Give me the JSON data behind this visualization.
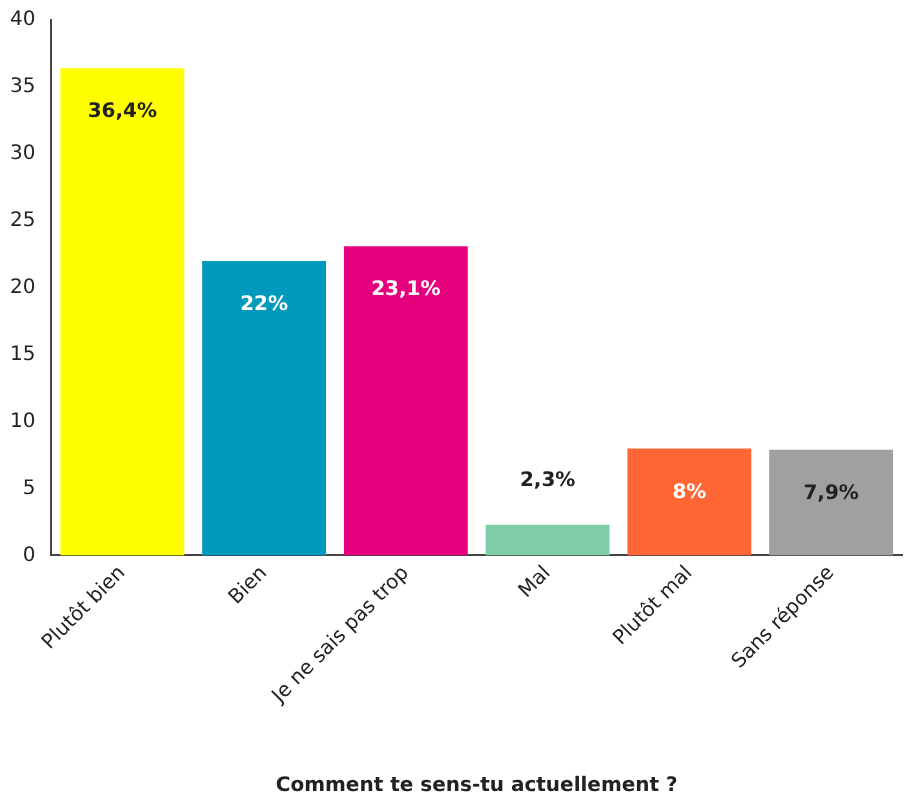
{
  "chart_data": {
    "type": "bar",
    "xlabel": "Comment te sens-tu actuellement ?",
    "categories": [
      "Plutôt bien",
      "Bien",
      "Je ne sais pas trop",
      "Mal",
      "Plutôt mal",
      "Sans réponse"
    ],
    "values": [
      36.4,
      22,
      23.1,
      2.3,
      8,
      7.9
    ],
    "colors": [
      "#ffff00",
      "#0099bb",
      "#e6007e",
      "#80cca8",
      "#ff6633",
      "#a0a0a0"
    ],
    "value_labels": [
      "36,4%",
      "22%",
      "23,1%",
      "2,3%",
      "8%",
      "7,9%"
    ],
    "ylim": [
      0,
      40
    ],
    "yticks": [
      0,
      5,
      10,
      15,
      20,
      25,
      30,
      35,
      40
    ],
    "grid": false,
    "legend": false
  }
}
